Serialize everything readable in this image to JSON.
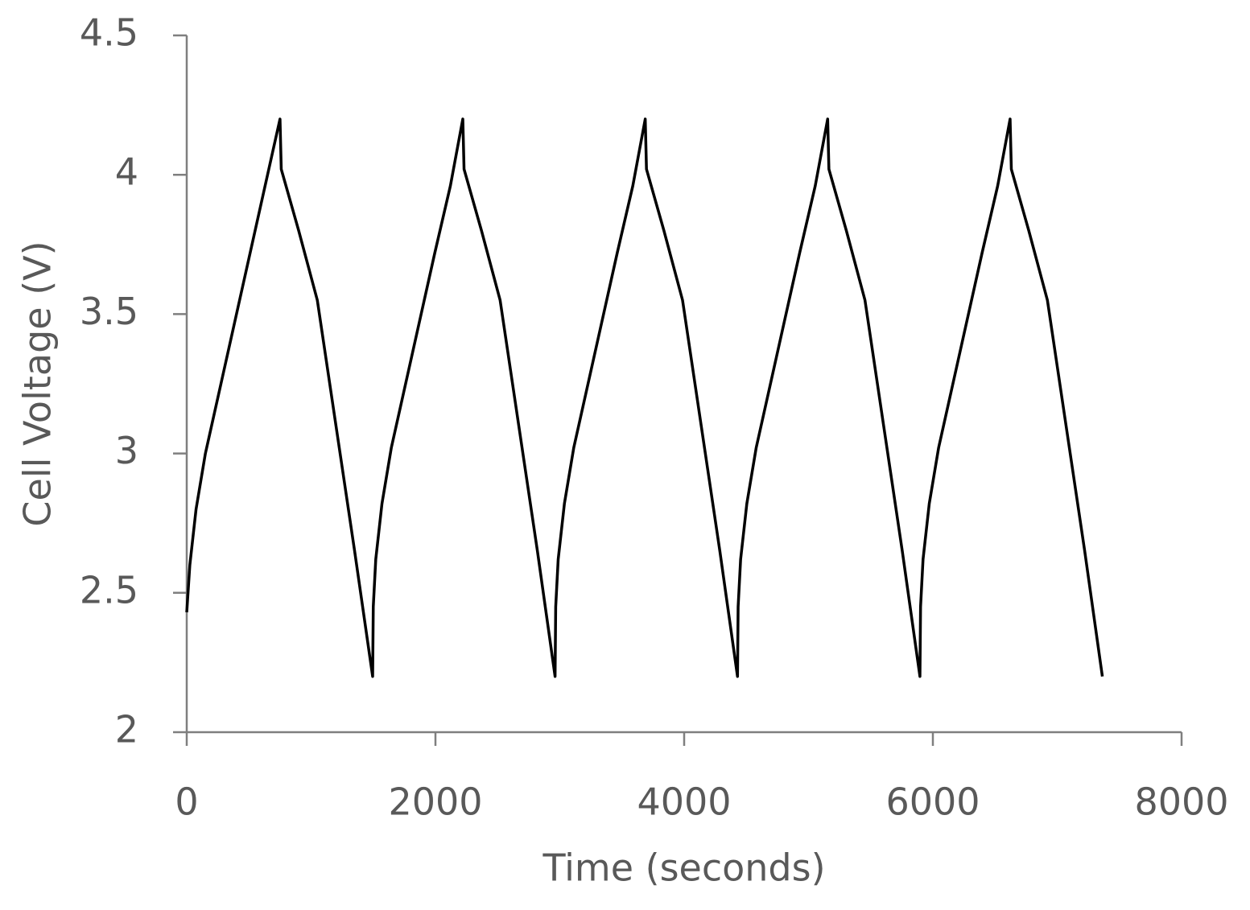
{
  "chart_data": {
    "type": "line",
    "x_label": "Time (seconds)",
    "y_label": "Cell Voltage (V)",
    "xlim": [
      0,
      8000
    ],
    "xticks": [
      0,
      2000,
      4000,
      6000,
      8000
    ],
    "ylim": [
      2,
      4.5
    ],
    "yticks": [
      2,
      2.5,
      3,
      3.5,
      4,
      4.5
    ],
    "grid": false,
    "series": [
      {
        "color": "#000000",
        "x": [
          0,
          25,
          75,
          150,
          250,
          375,
          500,
          625,
          750,
          760,
          900,
          1050,
          1200,
          1350,
          1495,
          1500,
          1520,
          1570,
          1645,
          1745,
          1870,
          1995,
          2120,
          2220,
          2230,
          2370,
          2520,
          2670,
          2820,
          2962,
          2967,
          2987,
          3037,
          3112,
          3212,
          3337,
          3462,
          3587,
          3687,
          3697,
          3837,
          3987,
          4137,
          4287,
          4429,
          4434,
          4454,
          4504,
          4579,
          4679,
          4804,
          4929,
          5054,
          5154,
          5164,
          5304,
          5454,
          5604,
          5754,
          5896,
          5901,
          5921,
          5971,
          6046,
          6146,
          6271,
          6396,
          6521,
          6621,
          6631,
          6771,
          6921,
          7071,
          7221,
          7363
        ],
        "values": [
          2.43,
          2.6,
          2.8,
          3.0,
          3.2,
          3.45,
          3.7,
          3.95,
          4.2,
          4.02,
          3.8,
          3.55,
          3.1,
          2.65,
          2.2,
          2.45,
          2.62,
          2.82,
          3.02,
          3.22,
          3.47,
          3.72,
          3.96,
          4.2,
          4.02,
          3.8,
          3.55,
          3.1,
          2.65,
          2.2,
          2.45,
          2.62,
          2.82,
          3.02,
          3.22,
          3.47,
          3.72,
          3.96,
          4.2,
          4.02,
          3.8,
          3.55,
          3.1,
          2.65,
          2.2,
          2.45,
          2.62,
          2.82,
          3.02,
          3.22,
          3.47,
          3.72,
          3.96,
          4.2,
          4.02,
          3.8,
          3.55,
          3.1,
          2.65,
          2.2,
          2.45,
          2.62,
          2.82,
          3.02,
          3.22,
          3.47,
          3.72,
          3.96,
          4.2,
          4.02,
          3.8,
          3.55,
          3.1,
          2.65,
          2.2
        ]
      }
    ]
  }
}
